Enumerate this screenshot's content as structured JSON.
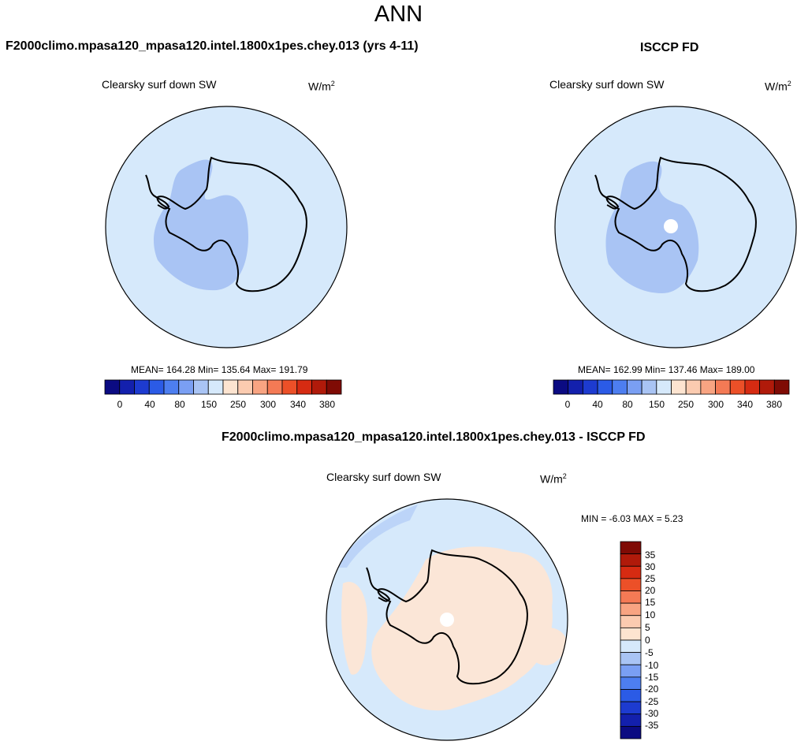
{
  "page": {
    "title": "ANN"
  },
  "colors": {
    "ocean": "#d6e9fb",
    "shelf": "#bcd4f8",
    "interior": "#a9c4f4",
    "coast": "#000000",
    "missing": "#ffffff",
    "diff_positive": "#fbe6d7",
    "diff_negative_light": "#bcd4f8"
  },
  "panels": {
    "model": {
      "header": "F2000climo.mpasa120_mpasa120.intel.1800x1pes.chey.013 (yrs 4-11)",
      "variable": "Clearsky surf down SW",
      "units_base": "W/m",
      "units_exp": "2",
      "stats": "MEAN= 164.28  Min= 135.64  Max= 191.79"
    },
    "obs": {
      "header": "ISCCP FD",
      "variable": "Clearsky surf down SW",
      "units_base": "W/m",
      "units_exp": "2",
      "stats": "MEAN= 162.99  Min= 137.46  Max= 189.00"
    },
    "diff": {
      "header": "F2000climo.mpasa120_mpasa120.intel.1800x1pes.chey.013 - ISCCP FD",
      "variable": "Clearsky surf down SW",
      "units_base": "W/m",
      "units_exp": "2",
      "stats": "MIN =  -6.03 MAX =   5.23"
    }
  },
  "colorbar_main": {
    "colors": [
      "#0b0b82",
      "#1320ad",
      "#1d3bd0",
      "#2b5be6",
      "#4d7ef0",
      "#7a9ff3",
      "#a9c4f4",
      "#d6e9fb",
      "#fde4d0",
      "#fbcbb0",
      "#f8a482",
      "#f47a55",
      "#ec5028",
      "#d62b12",
      "#b01a0a",
      "#7f0b05"
    ],
    "tick_labels": [
      "0",
      "40",
      "80",
      "150",
      "250",
      "300",
      "340",
      "380"
    ]
  },
  "colorbar_diff": {
    "colors": [
      "#7f0b05",
      "#b01a0a",
      "#d62b12",
      "#ec5028",
      "#f47a55",
      "#f8a482",
      "#fbcbb0",
      "#fde4d0",
      "#d6e9fb",
      "#a9c4f4",
      "#7a9ff3",
      "#4d7ef0",
      "#2b5be6",
      "#1d3bd0",
      "#1320ad",
      "#0b0b82"
    ],
    "tick_labels": [
      "35",
      "30",
      "25",
      "20",
      "15",
      "10",
      "5",
      "0",
      "-5",
      "-10",
      "-15",
      "-20",
      "-25",
      "-30",
      "-35"
    ]
  }
}
